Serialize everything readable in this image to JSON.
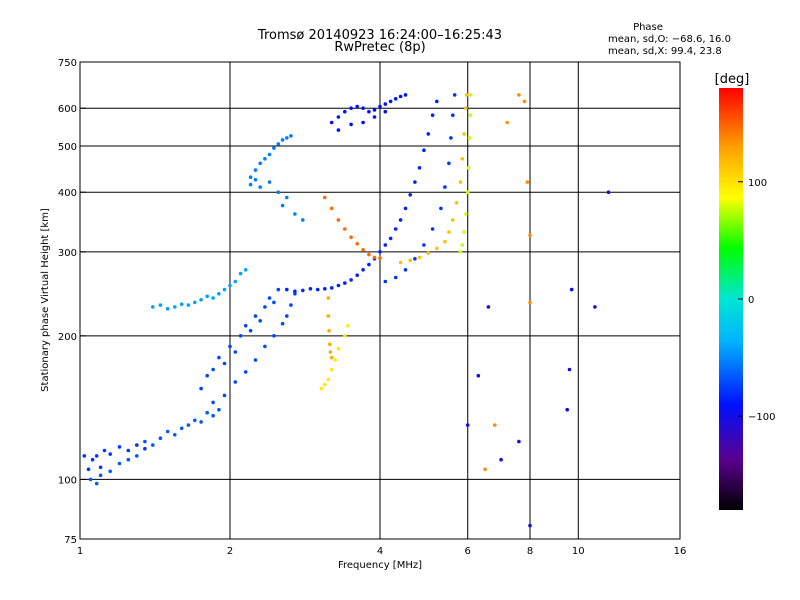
{
  "chart_data": {
    "type": "scatter",
    "title": "Tromsø 20140923 16:24:00–16:25:43",
    "subtitle": "RwPretec (8p)",
    "xlabel": "Frequency [MHz]",
    "ylabel": "Stationary phase Virtual Height [km]",
    "x_scale": "log",
    "y_scale": "log",
    "xlim": [
      1,
      16
    ],
    "ylim": [
      75,
      750
    ],
    "x_ticks": [
      1,
      2,
      4,
      6,
      8,
      10,
      16
    ],
    "x_tick_labels": [
      "1",
      "2",
      "4",
      "6",
      "8",
      "10",
      "16"
    ],
    "y_ticks": [
      75,
      100,
      200,
      300,
      400,
      500,
      600,
      750
    ],
    "y_tick_labels": [
      "75",
      "100",
      "200",
      "300",
      "400",
      "500",
      "600",
      "750"
    ],
    "grid": true,
    "phase_stats": {
      "heading": "Phase",
      "line_o": "mean, sd,O: −68.6, 16.0",
      "line_x": "mean, sd,X:  99.4, 23.8"
    },
    "colorbar": {
      "label": "[deg]",
      "range": [
        -180,
        180
      ],
      "ticks": [
        100,
        0,
        -100
      ],
      "tick_labels": [
        "100",
        "0",
        "−100"
      ],
      "colormap": "rainbow",
      "stops": [
        "#000000",
        "#5a0090",
        "#0010ff",
        "#00b4ff",
        "#00e6d2",
        "#00ff00",
        "#ffff00",
        "#ffa000",
        "#ff0000"
      ]
    },
    "series": [
      {
        "phase_deg": -80,
        "points": [
          [
            1.02,
            112
          ],
          [
            1.04,
            105
          ],
          [
            1.06,
            110
          ],
          [
            1.08,
            112
          ],
          [
            1.1,
            106
          ],
          [
            1.12,
            115
          ],
          [
            1.15,
            113
          ],
          [
            1.2,
            117
          ],
          [
            1.25,
            115
          ],
          [
            1.3,
            118
          ],
          [
            1.35,
            116
          ]
        ]
      },
      {
        "phase_deg": -70,
        "points": [
          [
            1.05,
            100
          ],
          [
            1.08,
            98
          ],
          [
            1.1,
            102
          ],
          [
            1.15,
            104
          ],
          [
            1.2,
            108
          ],
          [
            1.25,
            110
          ],
          [
            1.3,
            112
          ],
          [
            1.35,
            120
          ],
          [
            1.4,
            118
          ],
          [
            1.45,
            122
          ],
          [
            1.5,
            126
          ],
          [
            1.55,
            124
          ],
          [
            1.6,
            128
          ],
          [
            1.65,
            130
          ],
          [
            1.7,
            133
          ],
          [
            1.75,
            132
          ],
          [
            1.8,
            138
          ],
          [
            1.85,
            136
          ],
          [
            1.9,
            140
          ]
        ]
      },
      {
        "phase_deg": -50,
        "points": [
          [
            1.4,
            230
          ],
          [
            1.45,
            232
          ],
          [
            1.5,
            228
          ],
          [
            1.55,
            230
          ],
          [
            1.6,
            233
          ],
          [
            1.65,
            232
          ],
          [
            1.7,
            235
          ],
          [
            1.75,
            238
          ],
          [
            1.8,
            242
          ],
          [
            1.85,
            240
          ],
          [
            1.9,
            245
          ],
          [
            1.95,
            250
          ],
          [
            2.0,
            255
          ],
          [
            2.05,
            260
          ],
          [
            2.1,
            270
          ],
          [
            2.15,
            275
          ]
        ]
      },
      {
        "phase_deg": -75,
        "points": [
          [
            1.75,
            155
          ],
          [
            1.8,
            165
          ],
          [
            1.85,
            170
          ],
          [
            1.9,
            180
          ],
          [
            1.95,
            175
          ],
          [
            2.0,
            190
          ],
          [
            2.05,
            185
          ],
          [
            2.1,
            200
          ],
          [
            2.15,
            210
          ],
          [
            2.2,
            205
          ],
          [
            2.25,
            220
          ],
          [
            2.3,
            215
          ],
          [
            2.35,
            230
          ],
          [
            2.4,
            240
          ],
          [
            2.45,
            235
          ],
          [
            2.5,
            250
          ],
          [
            1.85,
            145
          ],
          [
            1.95,
            150
          ],
          [
            2.05,
            160
          ],
          [
            2.15,
            168
          ],
          [
            2.25,
            178
          ],
          [
            2.35,
            190
          ],
          [
            2.45,
            200
          ],
          [
            2.55,
            212
          ],
          [
            2.6,
            220
          ],
          [
            2.65,
            232
          ],
          [
            2.7,
            245
          ]
        ]
      },
      {
        "phase_deg": -60,
        "points": [
          [
            2.2,
            430
          ],
          [
            2.25,
            445
          ],
          [
            2.3,
            460
          ],
          [
            2.35,
            470
          ],
          [
            2.4,
            480
          ],
          [
            2.45,
            495
          ],
          [
            2.5,
            505
          ],
          [
            2.55,
            515
          ],
          [
            2.6,
            520
          ],
          [
            2.65,
            525
          ],
          [
            2.2,
            415
          ],
          [
            2.25,
            425
          ],
          [
            2.3,
            410
          ],
          [
            2.4,
            420
          ],
          [
            2.5,
            400
          ],
          [
            2.6,
            390
          ],
          [
            2.55,
            375
          ],
          [
            2.7,
            360
          ],
          [
            2.8,
            350
          ]
        ]
      },
      {
        "phase_deg": -85,
        "points": [
          [
            2.6,
            250
          ],
          [
            2.7,
            248
          ],
          [
            2.8,
            249
          ],
          [
            2.9,
            251
          ],
          [
            3.0,
            250
          ],
          [
            3.1,
            251
          ],
          [
            3.2,
            252
          ],
          [
            3.3,
            255
          ],
          [
            3.4,
            258
          ],
          [
            3.5,
            262
          ],
          [
            3.6,
            268
          ],
          [
            3.7,
            275
          ],
          [
            3.8,
            282
          ],
          [
            3.9,
            290
          ],
          [
            4.0,
            300
          ],
          [
            4.1,
            310
          ],
          [
            4.2,
            320
          ],
          [
            4.3,
            335
          ],
          [
            4.4,
            350
          ],
          [
            4.5,
            370
          ],
          [
            4.6,
            395
          ],
          [
            4.7,
            420
          ],
          [
            4.8,
            450
          ],
          [
            4.9,
            490
          ],
          [
            5.0,
            530
          ],
          [
            5.1,
            580
          ],
          [
            5.2,
            620
          ]
        ]
      },
      {
        "phase_deg": -90,
        "points": [
          [
            3.2,
            560
          ],
          [
            3.3,
            575
          ],
          [
            3.4,
            590
          ],
          [
            3.5,
            600
          ],
          [
            3.6,
            605
          ],
          [
            3.7,
            600
          ],
          [
            3.8,
            590
          ],
          [
            3.9,
            595
          ],
          [
            4.0,
            605
          ],
          [
            4.1,
            612
          ],
          [
            4.2,
            620
          ],
          [
            4.3,
            628
          ],
          [
            4.4,
            635
          ],
          [
            4.5,
            640
          ],
          [
            3.3,
            540
          ],
          [
            3.5,
            555
          ],
          [
            3.7,
            560
          ],
          [
            3.9,
            575
          ],
          [
            4.1,
            590
          ]
        ]
      },
      {
        "phase_deg": -80,
        "points": [
          [
            4.1,
            260
          ],
          [
            4.3,
            265
          ],
          [
            4.5,
            275
          ],
          [
            4.7,
            290
          ],
          [
            4.9,
            310
          ],
          [
            5.1,
            335
          ],
          [
            5.3,
            370
          ],
          [
            5.4,
            410
          ],
          [
            5.5,
            460
          ],
          [
            5.55,
            520
          ],
          [
            5.6,
            580
          ],
          [
            5.65,
            640
          ]
        ]
      },
      {
        "phase_deg": 150,
        "points": [
          [
            3.1,
            390
          ],
          [
            3.2,
            370
          ],
          [
            3.3,
            350
          ],
          [
            3.4,
            335
          ],
          [
            3.5,
            322
          ],
          [
            3.6,
            312
          ],
          [
            3.7,
            303
          ],
          [
            3.8,
            296
          ],
          [
            3.9,
            292
          ],
          [
            4.0,
            291
          ]
        ]
      },
      {
        "phase_deg": 130,
        "points": [
          [
            3.15,
            240
          ],
          [
            3.15,
            220
          ],
          [
            3.16,
            205
          ],
          [
            3.17,
            192
          ],
          [
            3.18,
            185
          ],
          [
            3.2,
            180
          ]
        ]
      },
      {
        "phase_deg": 100,
        "points": [
          [
            3.05,
            155
          ],
          [
            3.1,
            158
          ],
          [
            3.15,
            162
          ],
          [
            3.2,
            170
          ],
          [
            3.25,
            178
          ],
          [
            3.3,
            188
          ],
          [
            3.4,
            200
          ],
          [
            3.45,
            210
          ]
        ]
      },
      {
        "phase_deg": 120,
        "points": [
          [
            4.4,
            285
          ],
          [
            4.6,
            288
          ],
          [
            4.8,
            292
          ],
          [
            5.0,
            298
          ],
          [
            5.2,
            305
          ],
          [
            5.4,
            315
          ],
          [
            5.5,
            330
          ],
          [
            5.6,
            350
          ],
          [
            5.7,
            380
          ],
          [
            5.8,
            420
          ],
          [
            5.85,
            470
          ],
          [
            5.9,
            530
          ],
          [
            5.95,
            600
          ],
          [
            5.97,
            640
          ]
        ]
      },
      {
        "phase_deg": 80,
        "points": [
          [
            5.8,
            300
          ],
          [
            5.85,
            310
          ],
          [
            5.9,
            330
          ],
          [
            5.95,
            360
          ],
          [
            6.0,
            400
          ],
          [
            6.02,
            450
          ],
          [
            6.05,
            520
          ],
          [
            6.07,
            580
          ],
          [
            6.08,
            640
          ]
        ]
      },
      {
        "phase_deg": -100,
        "points": [
          [
            6.0,
            130
          ],
          [
            6.3,
            165
          ],
          [
            6.6,
            230
          ],
          [
            7.0,
            110
          ],
          [
            7.6,
            120
          ],
          [
            8.0,
            80
          ],
          [
            9.5,
            140
          ],
          [
            9.6,
            170
          ],
          [
            9.7,
            250
          ],
          [
            10.8,
            230
          ],
          [
            11.5,
            400
          ]
        ]
      },
      {
        "phase_deg": 140,
        "points": [
          [
            6.5,
            105
          ],
          [
            6.8,
            130
          ],
          [
            7.2,
            560
          ],
          [
            7.6,
            640
          ],
          [
            7.8,
            620
          ],
          [
            7.9,
            420
          ],
          [
            8.0,
            325
          ],
          [
            8.0,
            235
          ]
        ]
      }
    ]
  }
}
